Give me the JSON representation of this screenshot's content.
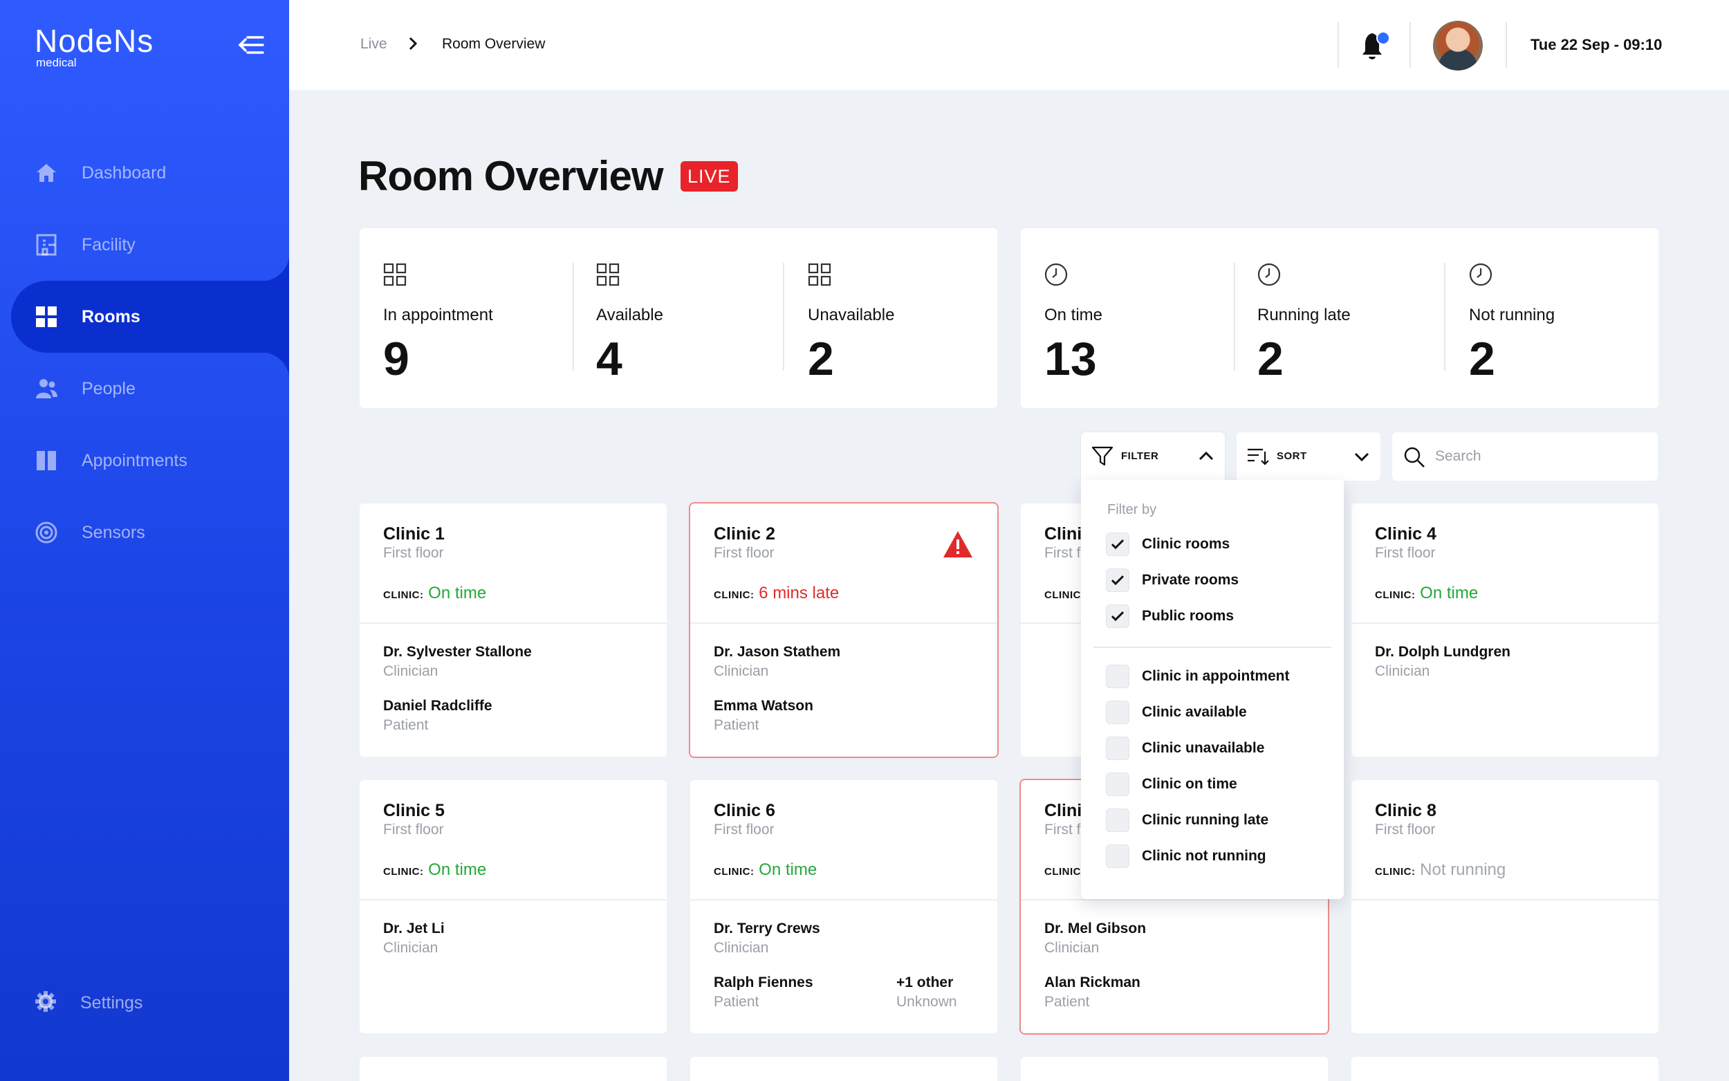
{
  "sidebar": {
    "logo": {
      "main": "NodeNs",
      "sub": "medical"
    },
    "items": [
      {
        "label": "Dashboard",
        "icon": "home-icon"
      },
      {
        "label": "Facility",
        "icon": "building-icon"
      },
      {
        "label": "Rooms",
        "icon": "grid-icon",
        "active": true
      },
      {
        "label": "People",
        "icon": "people-icon"
      },
      {
        "label": "Appointments",
        "icon": "columns-icon"
      },
      {
        "label": "Sensors",
        "icon": "target-icon"
      }
    ],
    "settings_label": "Settings"
  },
  "header": {
    "breadcrumb": [
      "Live",
      "Room Overview"
    ],
    "datetime": "Tue 22 Sep - 09:10"
  },
  "page": {
    "title": "Room Overview",
    "badge": "LIVE"
  },
  "stats": {
    "rooms": [
      {
        "label": "In appointment",
        "value": "9"
      },
      {
        "label": "Available",
        "value": "4"
      },
      {
        "label": "Unavailable",
        "value": "2"
      }
    ],
    "timing": [
      {
        "label": "On time",
        "value": "13"
      },
      {
        "label": "Running late",
        "value": "2"
      },
      {
        "label": "Not running",
        "value": "2"
      }
    ]
  },
  "controls": {
    "filter_label": "FILTER",
    "sort_label": "SORT",
    "search_placeholder": "Search"
  },
  "filter": {
    "title": "Filter by",
    "groups": [
      [
        {
          "label": "Clinic rooms",
          "checked": true
        },
        {
          "label": "Private rooms",
          "checked": true
        },
        {
          "label": "Public rooms",
          "checked": true
        }
      ],
      [
        {
          "label": "Clinic in appointment",
          "checked": false
        },
        {
          "label": "Clinic available",
          "checked": false
        },
        {
          "label": "Clinic unavailable",
          "checked": false
        },
        {
          "label": "Clinic on time",
          "checked": false
        },
        {
          "label": "Clinic running late",
          "checked": false
        },
        {
          "label": "Clinic not running",
          "checked": false
        }
      ]
    ]
  },
  "status_prefix": "CLINIC:",
  "rooms": [
    {
      "name": "Clinic 1",
      "floor": "First floor",
      "status": "On time",
      "status_color": "#22a83a",
      "clinician": {
        "name": "Dr. Sylvester Stallone",
        "role": "Clinician"
      },
      "patient": {
        "name": "Daniel Radcliffe",
        "role": "Patient"
      }
    },
    {
      "name": "Clinic 2",
      "floor": "First floor",
      "status": "6 mins late",
      "status_color": "#e12a2a",
      "alert": true,
      "clinician": {
        "name": "Dr. Jason Stathem",
        "role": "Clinician"
      },
      "patient": {
        "name": "Emma Watson",
        "role": "Patient"
      }
    },
    {
      "name": "Clinic",
      "floor": "First f",
      "status": "",
      "partial": true
    },
    {
      "name": "Clinic 4",
      "floor": "First floor",
      "status": "On time",
      "status_color": "#22a83a",
      "clinician": {
        "name": "Dr. Dolph Lundgren",
        "role": "Clinician"
      }
    },
    {
      "name": "Clinic 5",
      "floor": "First floor",
      "status": "On time",
      "status_color": "#22a83a",
      "clinician": {
        "name": "Dr. Jet Li",
        "role": "Clinician"
      }
    },
    {
      "name": "Clinic 6",
      "floor": "First floor",
      "status": "On time",
      "status_color": "#22a83a",
      "clinician": {
        "name": "Dr. Terry Crews",
        "role": "Clinician"
      },
      "patient": {
        "name": "Ralph Fiennes",
        "role": "Patient"
      },
      "extra": {
        "name": "+1 other",
        "role": "Unknown"
      }
    },
    {
      "name": "Clinic",
      "floor": "First f",
      "status": "",
      "partial": true,
      "alert": true,
      "clinician": {
        "name": "Dr. Mel Gibson",
        "role": "Clinician"
      },
      "patient": {
        "name": "Alan Rickman",
        "role": "Patient"
      }
    },
    {
      "name": "Clinic 8",
      "floor": "First floor",
      "status": "Not running",
      "status_color": "#a3a7ae"
    }
  ]
}
